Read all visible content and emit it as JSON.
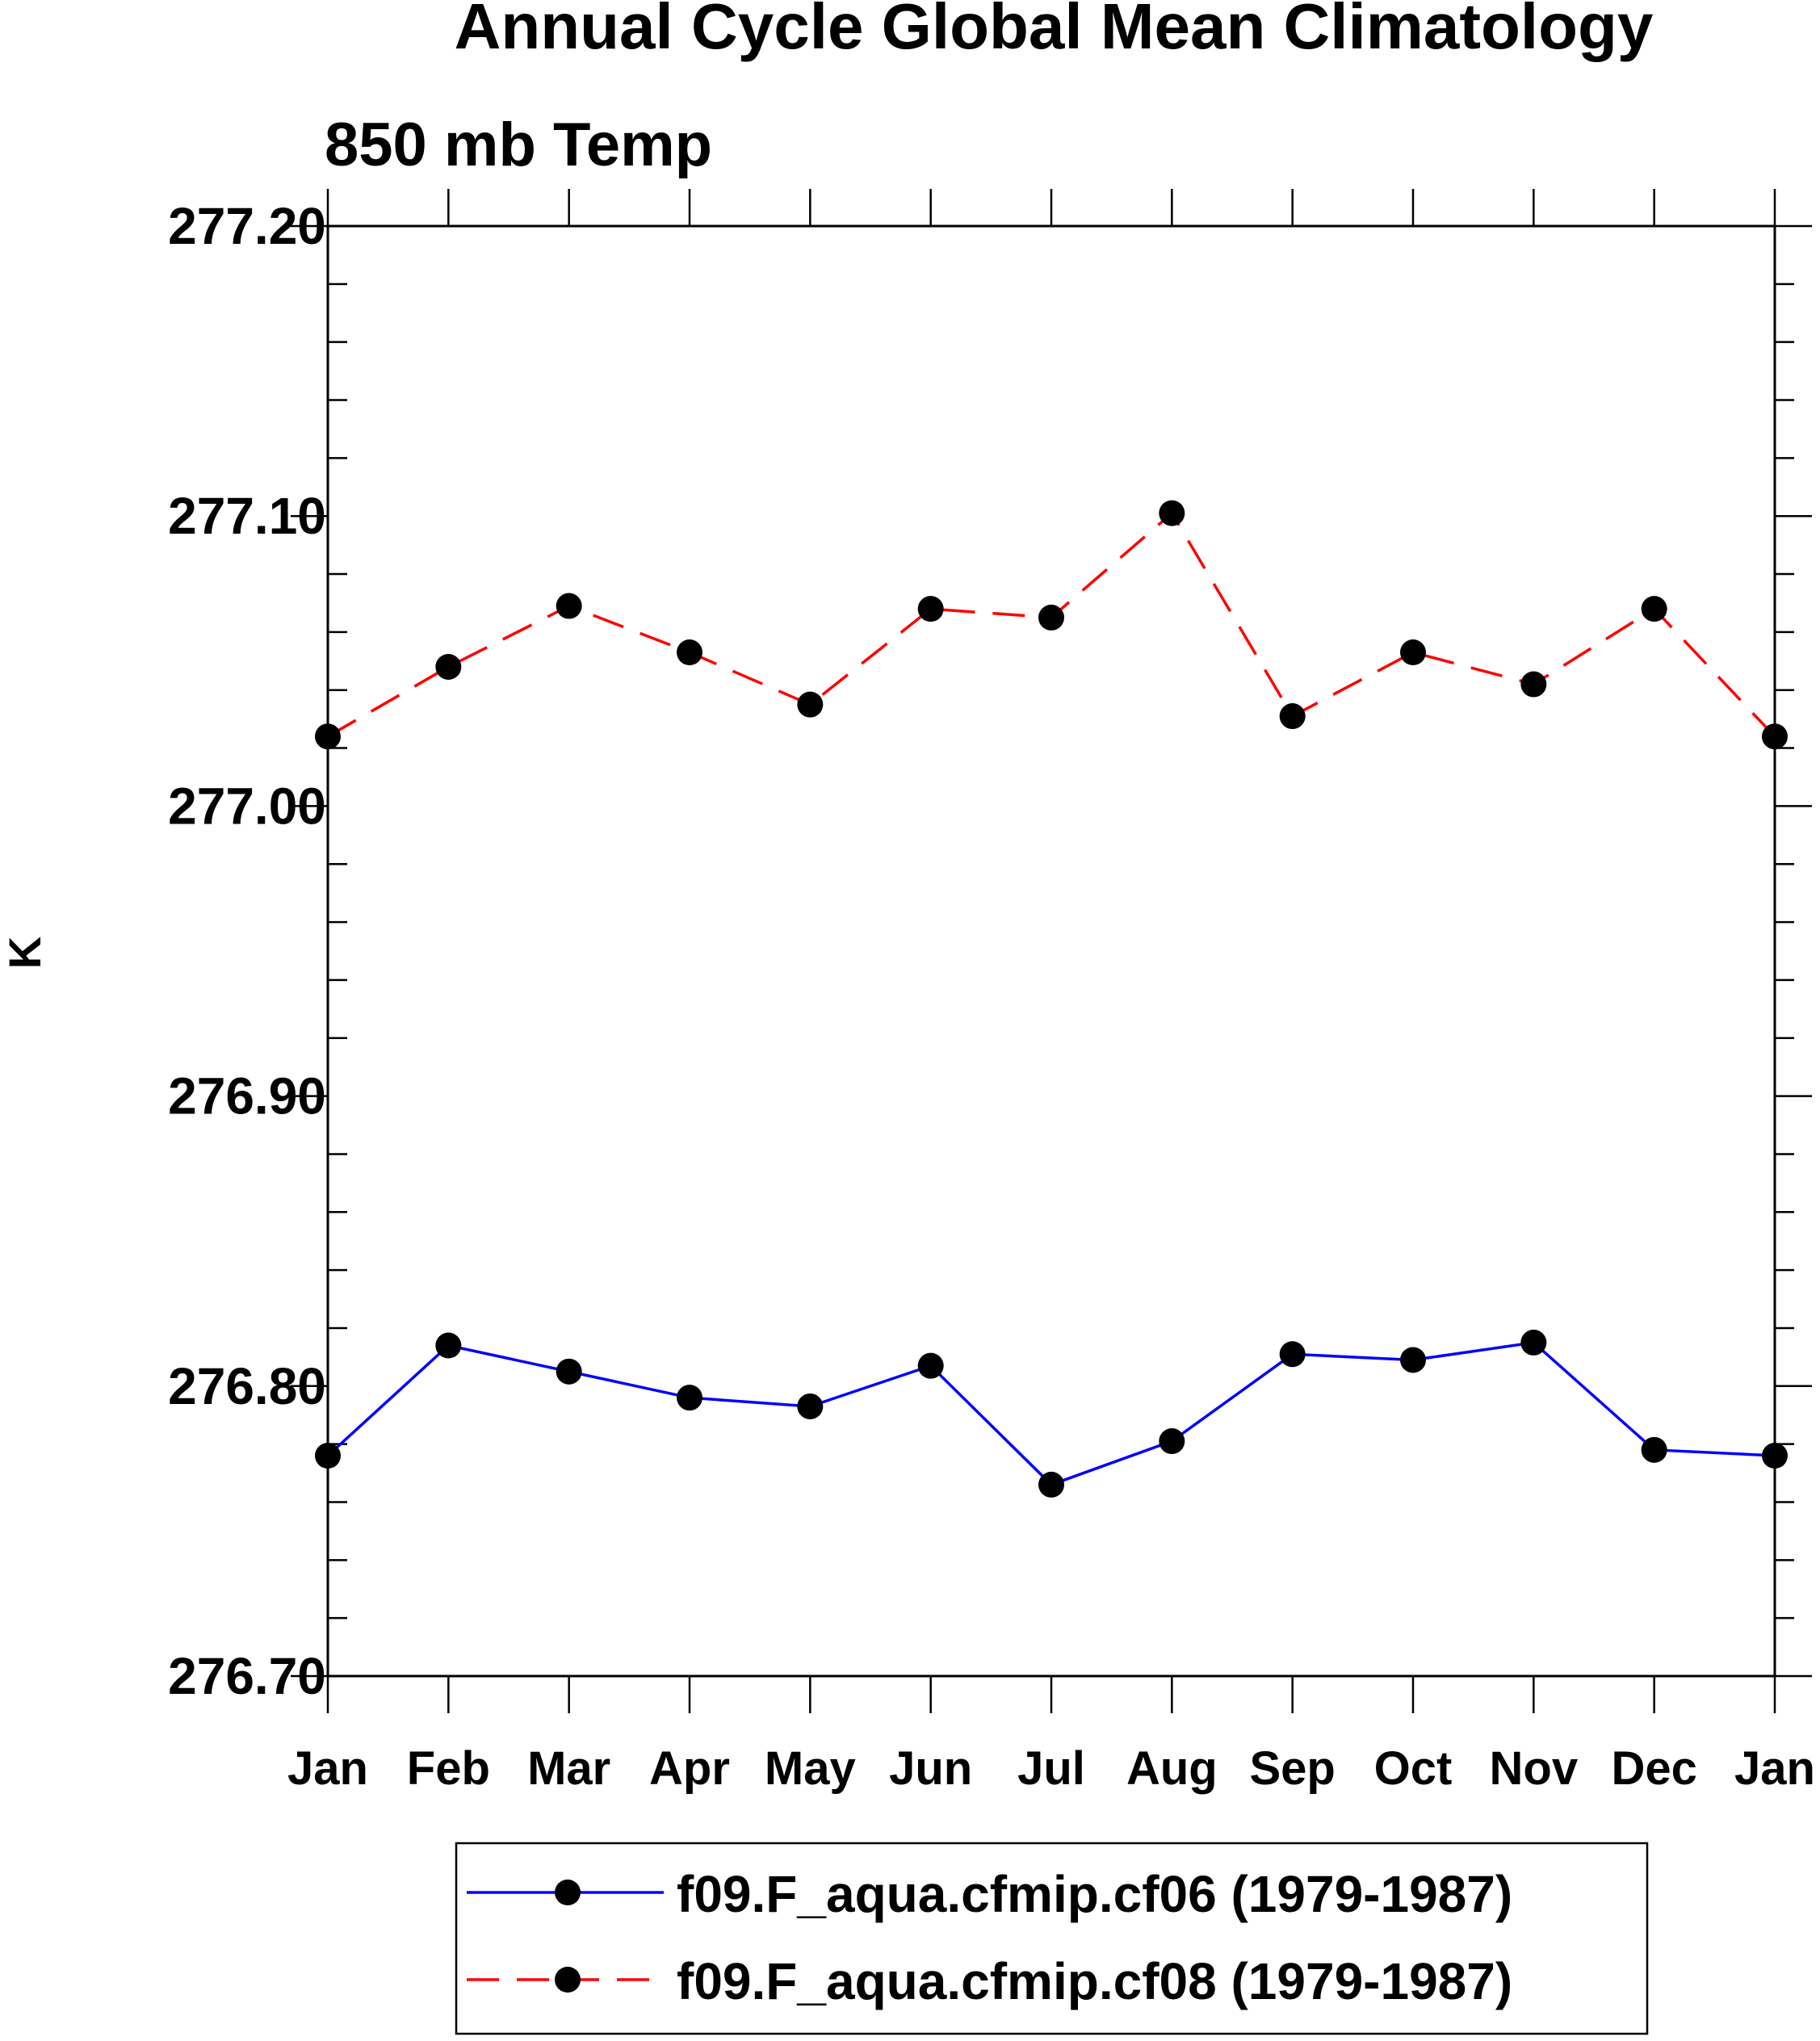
{
  "chart_data": {
    "type": "line",
    "title": "Annual Cycle Global Mean Climatology",
    "subtitle": "850 mb Temp",
    "xlabel": "",
    "ylabel": "K",
    "categories": [
      "Jan",
      "Feb",
      "Mar",
      "Apr",
      "May",
      "Jun",
      "Jul",
      "Aug",
      "Sep",
      "Oct",
      "Nov",
      "Dec",
      "Jan"
    ],
    "ylim": [
      276.7,
      277.2
    ],
    "yticks": [
      "276.70",
      "276.80",
      "276.90",
      "277.00",
      "277.10",
      "277.20"
    ],
    "grid": false,
    "legend_position": "bottom-center",
    "series": [
      {
        "name": "f09.F_aqua.cfmip.cf06 (1979-1987)",
        "color": "#0000ff",
        "dash": "solid",
        "values": [
          276.776,
          276.814,
          276.805,
          276.796,
          276.793,
          276.807,
          276.766,
          276.781,
          276.811,
          276.809,
          276.815,
          276.778,
          276.776
        ]
      },
      {
        "name": "f09.F_aqua.cfmip.cf08 (1979-1987)",
        "color": "#ff0000",
        "dash": "dashed",
        "values": [
          277.024,
          277.048,
          277.069,
          277.053,
          277.035,
          277.068,
          277.065,
          277.101,
          277.031,
          277.053,
          277.042,
          277.068,
          277.024
        ]
      }
    ]
  }
}
